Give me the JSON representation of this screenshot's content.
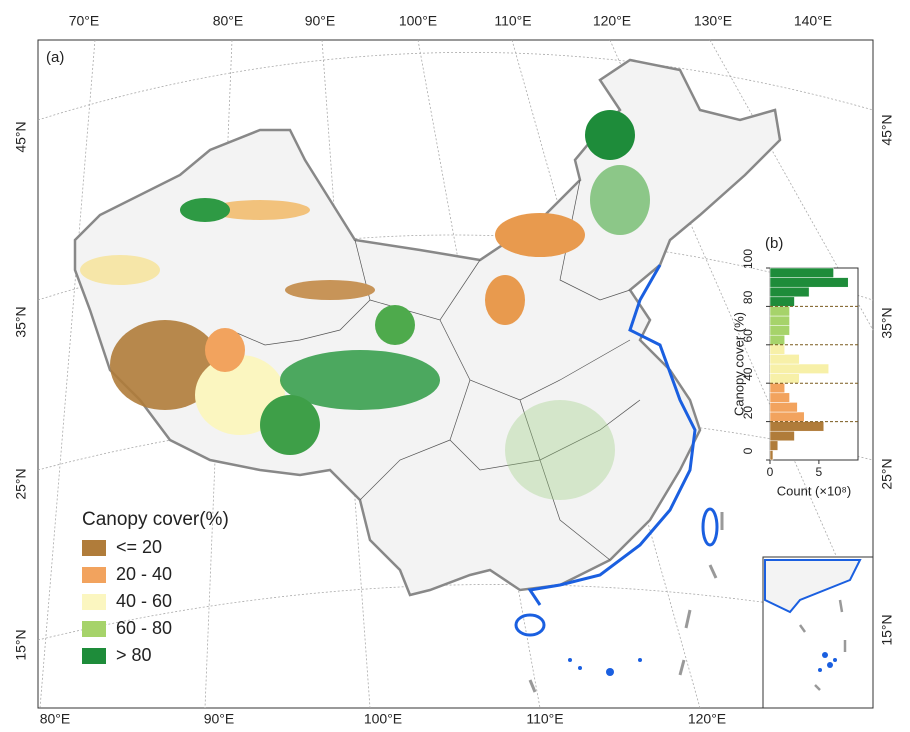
{
  "panel_a": "(a)",
  "panel_b": "(b)",
  "top_labels": [
    "70°E",
    "80°E",
    "90°E",
    "100°E",
    "110°E",
    "120°E",
    "130°E",
    "140°E"
  ],
  "bottom_labels": [
    "80°E",
    "90°E",
    "100°E",
    "110°E",
    "120°E"
  ],
  "left_labels": [
    "45°N",
    "35°N",
    "25°N",
    "15°N"
  ],
  "right_labels": [
    "45°N",
    "35°N",
    "25°N",
    "15°N"
  ],
  "legend": {
    "title": "Canopy cover(%)",
    "items": [
      {
        "label": "<= 20",
        "color": "#b07c3a"
      },
      {
        "label": "20 - 40",
        "color": "#f2a35e"
      },
      {
        "label": "40 - 60",
        "color": "#fbf6c0"
      },
      {
        "label": "60 - 80",
        "color": "#a6d36a"
      },
      {
        "label": "> 80",
        "color": "#1e8c3a"
      }
    ]
  },
  "histogram": {
    "ylabel": "Canopy cover (%)",
    "xlabel": "Count (×10⁸)",
    "bins": [
      0,
      5,
      10,
      15,
      20,
      25,
      30,
      35,
      40,
      45,
      50,
      55,
      60,
      65,
      70,
      75,
      80,
      85,
      90,
      95,
      100
    ],
    "counts": [
      0.3,
      0.8,
      2.5,
      5.5,
      3.5,
      2.8,
      2,
      1.5,
      3,
      6,
      3,
      1.5,
      1.5,
      2,
      2,
      2,
      2.5,
      4,
      8,
      6.5
    ],
    "colors": [
      "#b07c3a",
      "#b07c3a",
      "#b07c3a",
      "#b07c3a",
      "#f2a35e",
      "#f2a35e",
      "#f2a35e",
      "#f2a35e",
      "#f7f0a8",
      "#f7f0a8",
      "#f7f0a8",
      "#f7f0a8",
      "#a6d36a",
      "#a6d36a",
      "#a6d36a",
      "#a6d36a",
      "#1e8c3a",
      "#1e8c3a",
      "#1e8c3a",
      "#1e8c3a"
    ],
    "dashed_lines": [
      20,
      40,
      60,
      80
    ],
    "ylim": [
      0,
      100
    ],
    "yticks": [
      0,
      20,
      40,
      60,
      80,
      100
    ],
    "xlim": [
      0,
      9
    ],
    "xticks": [
      0,
      5
    ]
  }
}
